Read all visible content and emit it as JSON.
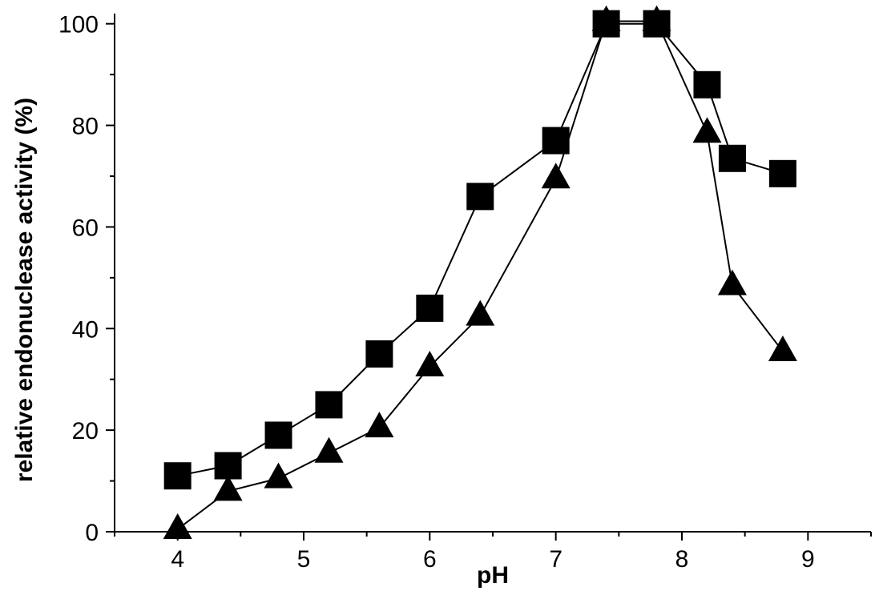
{
  "chart_data": {
    "type": "line",
    "title": "",
    "xlabel": "pH",
    "ylabel": "relative endonuclease activity (%)",
    "xlim": [
      3.5,
      9.5
    ],
    "ylim": [
      0,
      102
    ],
    "xticks": [
      4,
      5,
      6,
      7,
      8,
      9
    ],
    "yticks": [
      0,
      20,
      40,
      60,
      80,
      100
    ],
    "grid": false,
    "series": [
      {
        "marker": "square",
        "color": "#000000",
        "x": [
          4.0,
          4.4,
          4.8,
          5.2,
          5.6,
          6.0,
          6.4,
          7.0,
          7.4,
          7.8,
          8.2,
          8.4,
          8.8
        ],
        "y": [
          11,
          13,
          19,
          25,
          35,
          44,
          66,
          77,
          100,
          100,
          88,
          73.5,
          70.5
        ]
      },
      {
        "marker": "triangle",
        "color": "#000000",
        "x": [
          4.0,
          4.4,
          4.8,
          5.2,
          5.6,
          6.0,
          6.4,
          7.0,
          7.4,
          7.8,
          8.2,
          8.4,
          8.8
        ],
        "y": [
          0.5,
          8,
          10.5,
          15.5,
          20.5,
          32.5,
          42.5,
          69.5,
          100.5,
          100.5,
          78.5,
          48.5,
          35.5
        ]
      }
    ]
  }
}
